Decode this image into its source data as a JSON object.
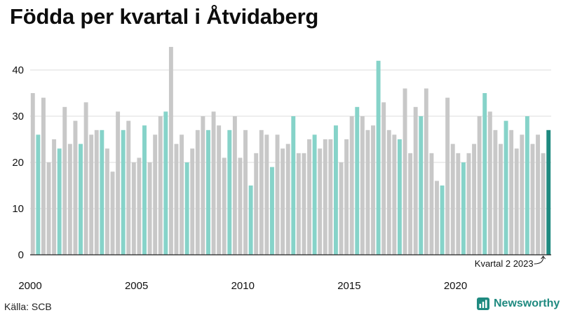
{
  "chart_data": {
    "type": "bar",
    "title": "Födda per kvartal i Åtvidaberg",
    "xlabel": "",
    "ylabel": "",
    "ylim": [
      0,
      45
    ],
    "y_ticks": [
      0,
      10,
      20,
      30,
      40
    ],
    "x_tick_labels": [
      "2000",
      "2005",
      "2010",
      "2015",
      "2020"
    ],
    "grid": true,
    "start_year": 2000,
    "quarters": [
      "Q1",
      "Q2",
      "Q3",
      "Q4"
    ],
    "highlight_quarter": 2,
    "values": [
      35,
      26,
      34,
      20,
      25,
      23,
      32,
      24,
      29,
      24,
      33,
      26,
      27,
      27,
      23,
      18,
      31,
      27,
      29,
      20,
      21,
      28,
      20,
      26,
      30,
      31,
      45,
      24,
      26,
      20,
      23,
      27,
      30,
      27,
      31,
      28,
      21,
      27,
      30,
      21,
      27,
      15,
      22,
      27,
      26,
      19,
      26,
      23,
      24,
      30,
      22,
      22,
      25,
      26,
      23,
      25,
      25,
      28,
      20,
      25,
      30,
      32,
      30,
      27,
      28,
      42,
      33,
      27,
      26,
      25,
      36,
      22,
      32,
      30,
      36,
      22,
      16,
      15,
      34,
      24,
      22,
      20,
      22,
      24,
      30,
      35,
      31,
      27,
      24,
      29,
      27,
      23,
      26,
      30,
      24,
      26,
      22,
      27
    ],
    "annotation": "Kvartal 2 2023",
    "colors": {
      "default": "#c8c8c8",
      "highlight": "#86d3c9",
      "last": "#1f8a80",
      "grid": "#dcdcdc",
      "axis": "#222222"
    }
  },
  "footer": {
    "source": "Källa: SCB",
    "brand": "Newsworthy",
    "brand_icon": "bar-chart-logo-icon"
  }
}
